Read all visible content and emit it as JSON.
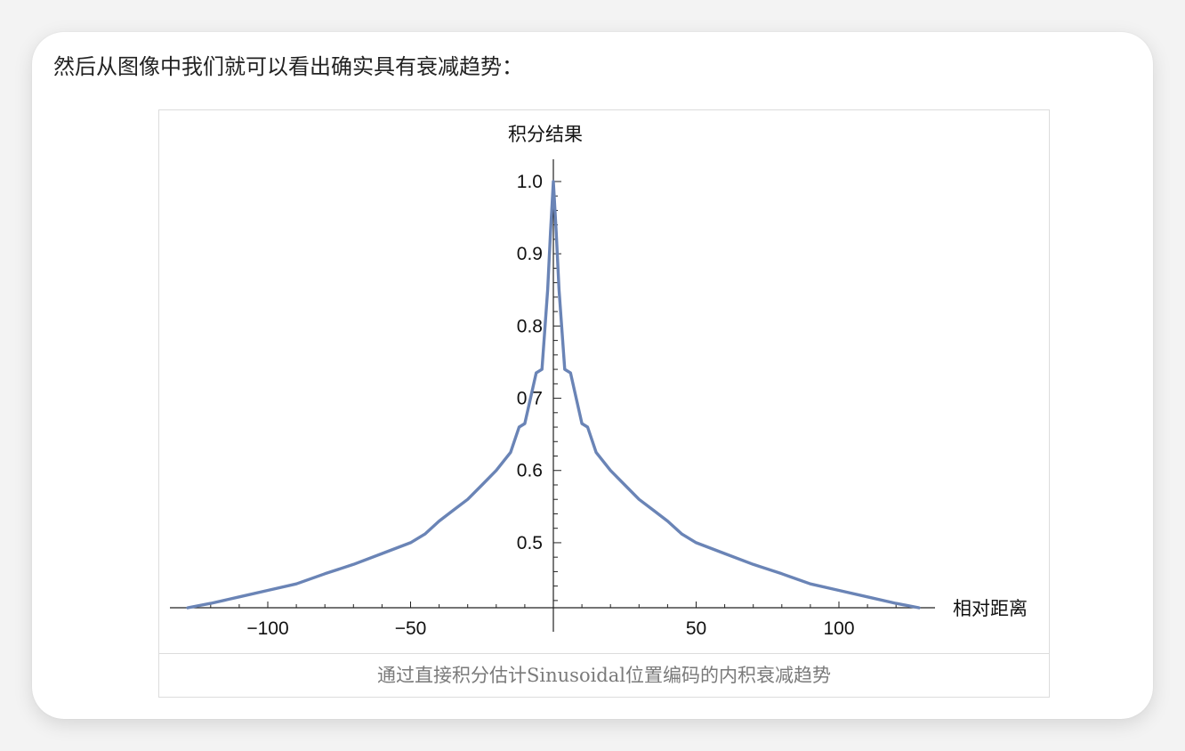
{
  "intro_text": "然后从图像中我们就可以看出确实具有衰减趋势：",
  "caption": "通过直接积分估计Sinusoidal位置编码的内积衰减趋势",
  "colors": {
    "line": "#6a84b6",
    "axis": "#222222",
    "border": "#dcdcdc",
    "caption": "#7a7a7a"
  },
  "chart_data": {
    "type": "line",
    "title": "",
    "xlabel": "相对距离",
    "ylabel": "积分结果",
    "xlim": [
      -128,
      128
    ],
    "ylim": [
      0.41,
      1.0
    ],
    "x_ticks": [
      -100,
      -50,
      50,
      100
    ],
    "x_tick_labels": [
      "−100",
      "−50",
      "50",
      "100"
    ],
    "y_ticks": [
      0.5,
      0.6,
      0.7,
      0.8,
      0.9,
      1.0
    ],
    "y_tick_labels": [
      "0.5",
      "0.6",
      "0.7",
      "0.8",
      "0.9",
      "1.0"
    ],
    "grid": false,
    "legend": "none",
    "series": [
      {
        "x": [
          -128,
          -120,
          -110,
          -100,
          -90,
          -80,
          -70,
          -60,
          -50,
          -45,
          -40,
          -35,
          -30,
          -25,
          -20,
          -15,
          -12,
          -10,
          -8,
          -6,
          -4,
          -2,
          -1,
          0,
          1,
          2,
          4,
          6,
          8,
          10,
          12,
          15,
          20,
          25,
          30,
          35,
          40,
          45,
          50,
          60,
          70,
          80,
          90,
          100,
          110,
          120,
          128
        ],
        "y": [
          0.41,
          0.416,
          0.425,
          0.434,
          0.443,
          0.457,
          0.47,
          0.485,
          0.5,
          0.512,
          0.53,
          0.545,
          0.56,
          0.58,
          0.6,
          0.625,
          0.66,
          0.665,
          0.7,
          0.735,
          0.74,
          0.85,
          0.93,
          1.0,
          0.93,
          0.85,
          0.74,
          0.735,
          0.7,
          0.665,
          0.66,
          0.625,
          0.6,
          0.58,
          0.56,
          0.545,
          0.53,
          0.512,
          0.5,
          0.485,
          0.47,
          0.457,
          0.443,
          0.434,
          0.425,
          0.416,
          0.41
        ]
      }
    ]
  }
}
